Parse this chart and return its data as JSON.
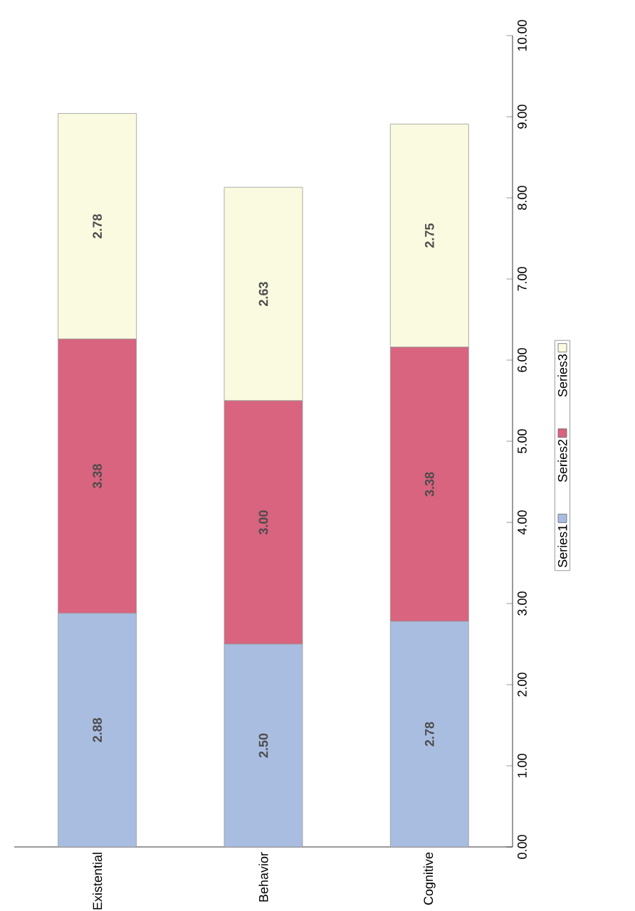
{
  "chart_data": {
    "type": "bar",
    "stacked": true,
    "legend": "right",
    "categories": [
      "Existential",
      "Behavior",
      "Cognitive"
    ],
    "series": [
      {
        "name": "Series1",
        "color": "#a9bde0",
        "values": [
          2.88,
          2.5,
          2.78
        ],
        "value_labels": [
          "2.88",
          "2.50",
          "2.78"
        ]
      },
      {
        "name": "Series2",
        "color": "#d8647f",
        "values": [
          3.38,
          3.0,
          3.38
        ],
        "value_labels": [
          "3.38",
          "3.00",
          "3.38"
        ]
      },
      {
        "name": "Series3",
        "color": "#fafae0",
        "values": [
          2.78,
          2.63,
          2.75
        ],
        "value_labels": [
          "2.78",
          "2.63",
          "2.75"
        ]
      }
    ],
    "ylim": [
      0,
      10
    ],
    "yticks": [
      {
        "value": 0,
        "label": "0.00"
      },
      {
        "value": 1,
        "label": "1.00"
      },
      {
        "value": 2,
        "label": "2.00"
      },
      {
        "value": 3,
        "label": "3.00"
      },
      {
        "value": 4,
        "label": "4.00"
      },
      {
        "value": 5,
        "label": "5.00"
      },
      {
        "value": 6,
        "label": "6.00"
      },
      {
        "value": 7,
        "label": "7.00"
      },
      {
        "value": 8,
        "label": "8.00"
      },
      {
        "value": 9,
        "label": "9.00"
      },
      {
        "value": 10,
        "label": "10.00"
      }
    ]
  }
}
